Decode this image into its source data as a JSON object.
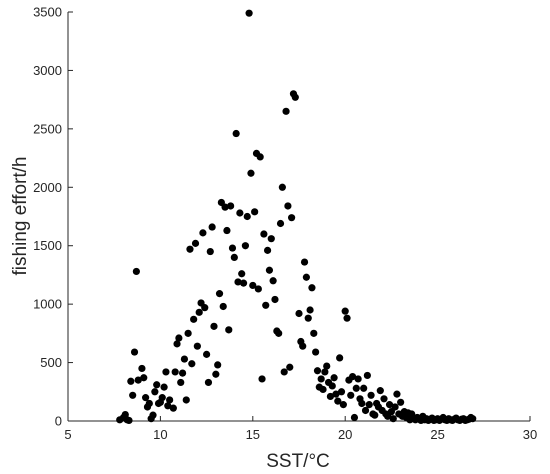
{
  "chart_data": {
    "type": "scatter",
    "xlabel": "SST/°C",
    "ylabel": "fishing effort/h",
    "xlim": [
      5,
      30
    ],
    "ylim": [
      0,
      3500
    ],
    "xticks": [
      "5",
      "10",
      "15",
      "20",
      "25",
      "30"
    ],
    "yticks": [
      "0",
      "500",
      "1000",
      "1500",
      "2000",
      "2500",
      "3000",
      "3500"
    ],
    "grid": false,
    "legend": "none",
    "marker_color": "#000000",
    "series": [
      {
        "points": [
          [
            7.8,
            10
          ],
          [
            8.0,
            30
          ],
          [
            8.1,
            55
          ],
          [
            8.2,
            10
          ],
          [
            8.3,
            5
          ],
          [
            8.4,
            340
          ],
          [
            8.5,
            220
          ],
          [
            8.6,
            590
          ],
          [
            8.7,
            1280
          ],
          [
            8.8,
            350
          ],
          [
            9.0,
            450
          ],
          [
            9.1,
            370
          ],
          [
            9.2,
            200
          ],
          [
            9.3,
            120
          ],
          [
            9.4,
            150
          ],
          [
            9.5,
            20
          ],
          [
            9.6,
            50
          ],
          [
            9.7,
            250
          ],
          [
            9.8,
            310
          ],
          [
            9.9,
            150
          ],
          [
            10.0,
            160
          ],
          [
            10.1,
            200
          ],
          [
            10.2,
            290
          ],
          [
            10.3,
            420
          ],
          [
            10.4,
            130
          ],
          [
            10.5,
            180
          ],
          [
            10.7,
            110
          ],
          [
            10.8,
            420
          ],
          [
            10.9,
            660
          ],
          [
            11.0,
            710
          ],
          [
            11.1,
            330
          ],
          [
            11.2,
            410
          ],
          [
            11.3,
            530
          ],
          [
            11.4,
            180
          ],
          [
            11.5,
            750
          ],
          [
            11.6,
            1470
          ],
          [
            11.7,
            490
          ],
          [
            11.8,
            870
          ],
          [
            11.9,
            1520
          ],
          [
            12.0,
            640
          ],
          [
            12.1,
            930
          ],
          [
            12.2,
            1010
          ],
          [
            12.3,
            1610
          ],
          [
            12.4,
            970
          ],
          [
            12.5,
            570
          ],
          [
            12.6,
            330
          ],
          [
            12.7,
            1450
          ],
          [
            12.8,
            1660
          ],
          [
            12.9,
            810
          ],
          [
            13.0,
            400
          ],
          [
            13.1,
            480
          ],
          [
            13.2,
            1090
          ],
          [
            13.3,
            1870
          ],
          [
            13.4,
            980
          ],
          [
            13.5,
            1830
          ],
          [
            13.6,
            1630
          ],
          [
            13.7,
            780
          ],
          [
            13.8,
            1840
          ],
          [
            13.9,
            1480
          ],
          [
            14.0,
            1400
          ],
          [
            14.1,
            2460
          ],
          [
            14.2,
            1190
          ],
          [
            14.3,
            1780
          ],
          [
            14.4,
            1260
          ],
          [
            14.5,
            1180
          ],
          [
            14.6,
            1500
          ],
          [
            14.7,
            1750
          ],
          [
            14.8,
            3490
          ],
          [
            14.9,
            2120
          ],
          [
            15.0,
            1160
          ],
          [
            15.1,
            1790
          ],
          [
            15.2,
            2290
          ],
          [
            15.3,
            1130
          ],
          [
            15.4,
            2260
          ],
          [
            15.5,
            360
          ],
          [
            15.6,
            1600
          ],
          [
            15.7,
            990
          ],
          [
            15.8,
            1460
          ],
          [
            15.9,
            1290
          ],
          [
            16.0,
            1560
          ],
          [
            16.1,
            1200
          ],
          [
            16.2,
            1040
          ],
          [
            16.3,
            770
          ],
          [
            16.4,
            750
          ],
          [
            16.5,
            1690
          ],
          [
            16.6,
            2000
          ],
          [
            16.7,
            420
          ],
          [
            16.8,
            2650
          ],
          [
            16.9,
            1840
          ],
          [
            17.0,
            460
          ],
          [
            17.1,
            1740
          ],
          [
            17.2,
            2800
          ],
          [
            17.3,
            2770
          ],
          [
            17.5,
            920
          ],
          [
            17.6,
            680
          ],
          [
            17.7,
            640
          ],
          [
            17.8,
            1360
          ],
          [
            17.9,
            1230
          ],
          [
            18.0,
            880
          ],
          [
            18.1,
            950
          ],
          [
            18.2,
            1140
          ],
          [
            18.3,
            750
          ],
          [
            18.4,
            590
          ],
          [
            18.5,
            430
          ],
          [
            18.6,
            290
          ],
          [
            18.7,
            360
          ],
          [
            18.8,
            270
          ],
          [
            18.9,
            420
          ],
          [
            19.0,
            470
          ],
          [
            19.1,
            330
          ],
          [
            19.2,
            210
          ],
          [
            19.3,
            300
          ],
          [
            19.4,
            370
          ],
          [
            19.5,
            230
          ],
          [
            19.6,
            170
          ],
          [
            19.7,
            540
          ],
          [
            19.8,
            250
          ],
          [
            19.9,
            140
          ],
          [
            20.0,
            940
          ],
          [
            20.1,
            880
          ],
          [
            20.2,
            350
          ],
          [
            20.3,
            220
          ],
          [
            20.4,
            380
          ],
          [
            20.5,
            30
          ],
          [
            20.6,
            280
          ],
          [
            20.7,
            360
          ],
          [
            20.8,
            190
          ],
          [
            20.9,
            150
          ],
          [
            21.0,
            280
          ],
          [
            21.1,
            90
          ],
          [
            21.2,
            390
          ],
          [
            21.3,
            140
          ],
          [
            21.4,
            220
          ],
          [
            21.5,
            60
          ],
          [
            21.6,
            50
          ],
          [
            21.7,
            150
          ],
          [
            21.8,
            120
          ],
          [
            21.9,
            260
          ],
          [
            22.0,
            90
          ],
          [
            22.1,
            190
          ],
          [
            22.2,
            60
          ],
          [
            22.3,
            40
          ],
          [
            22.4,
            140
          ],
          [
            22.5,
            80
          ],
          [
            22.6,
            20
          ],
          [
            22.7,
            120
          ],
          [
            22.8,
            230
          ],
          [
            22.9,
            60
          ],
          [
            23.0,
            160
          ],
          [
            23.1,
            40
          ],
          [
            23.2,
            80
          ],
          [
            23.3,
            30
          ],
          [
            23.4,
            70
          ],
          [
            23.5,
            10
          ],
          [
            23.6,
            60
          ],
          [
            23.7,
            20
          ],
          [
            23.8,
            10
          ],
          [
            23.9,
            30
          ],
          [
            24.0,
            15
          ],
          [
            24.1,
            5
          ],
          [
            24.2,
            40
          ],
          [
            24.3,
            10
          ],
          [
            24.4,
            20
          ],
          [
            24.5,
            5
          ],
          [
            24.6,
            15
          ],
          [
            24.7,
            25
          ],
          [
            24.8,
            5
          ],
          [
            24.9,
            10
          ],
          [
            25.0,
            20
          ],
          [
            25.1,
            5
          ],
          [
            25.2,
            15
          ],
          [
            25.3,
            30
          ],
          [
            25.4,
            10
          ],
          [
            25.5,
            5
          ],
          [
            25.6,
            20
          ],
          [
            25.7,
            10
          ],
          [
            25.8,
            5
          ],
          [
            25.9,
            15
          ],
          [
            26.0,
            25
          ],
          [
            26.1,
            10
          ],
          [
            26.2,
            5
          ],
          [
            26.3,
            15
          ],
          [
            26.4,
            20
          ],
          [
            26.5,
            5
          ],
          [
            26.6,
            10
          ],
          [
            26.7,
            15
          ],
          [
            26.8,
            30
          ],
          [
            26.9,
            20
          ]
        ]
      }
    ]
  }
}
